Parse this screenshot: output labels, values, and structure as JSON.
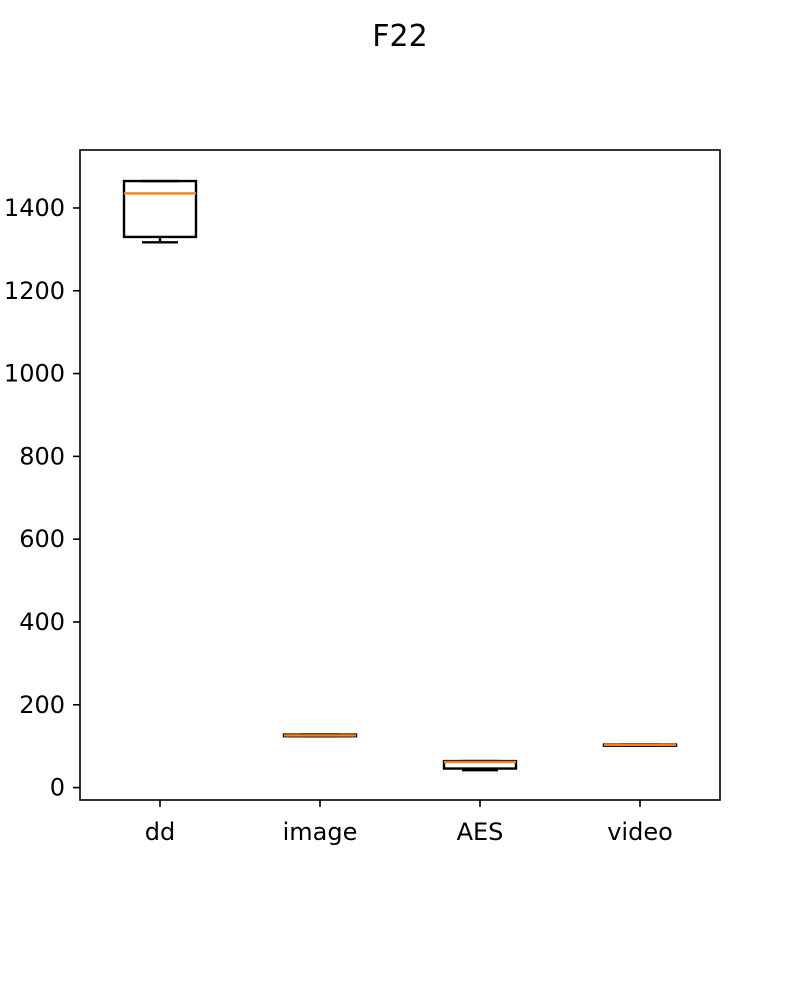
{
  "chart_data": {
    "type": "box",
    "title": "F22",
    "xlabel": "",
    "ylabel": "",
    "categories": [
      "dd",
      "image",
      "AES",
      "video"
    ],
    "ylim": [
      -30,
      1540
    ],
    "yticks": [
      0,
      200,
      400,
      600,
      800,
      1000,
      1200,
      1400
    ],
    "boxes": [
      {
        "category": "dd",
        "whisker_low": 1317,
        "q1": 1330,
        "median": 1435,
        "q3": 1465,
        "whisker_high": 1465
      },
      {
        "category": "image",
        "whisker_low": 124,
        "q1": 124,
        "median": 126,
        "q3": 128,
        "whisker_high": 128
      },
      {
        "category": "AES",
        "whisker_low": 42,
        "q1": 46,
        "median": 62,
        "q3": 64,
        "whisker_high": 64
      },
      {
        "category": "video",
        "whisker_low": 101,
        "q1": 101,
        "median": 103,
        "q3": 104,
        "whisker_high": 104
      }
    ],
    "grid": false,
    "colors": {
      "box": "#000000",
      "median": "#ff7f0e",
      "axis": "#000000"
    }
  }
}
